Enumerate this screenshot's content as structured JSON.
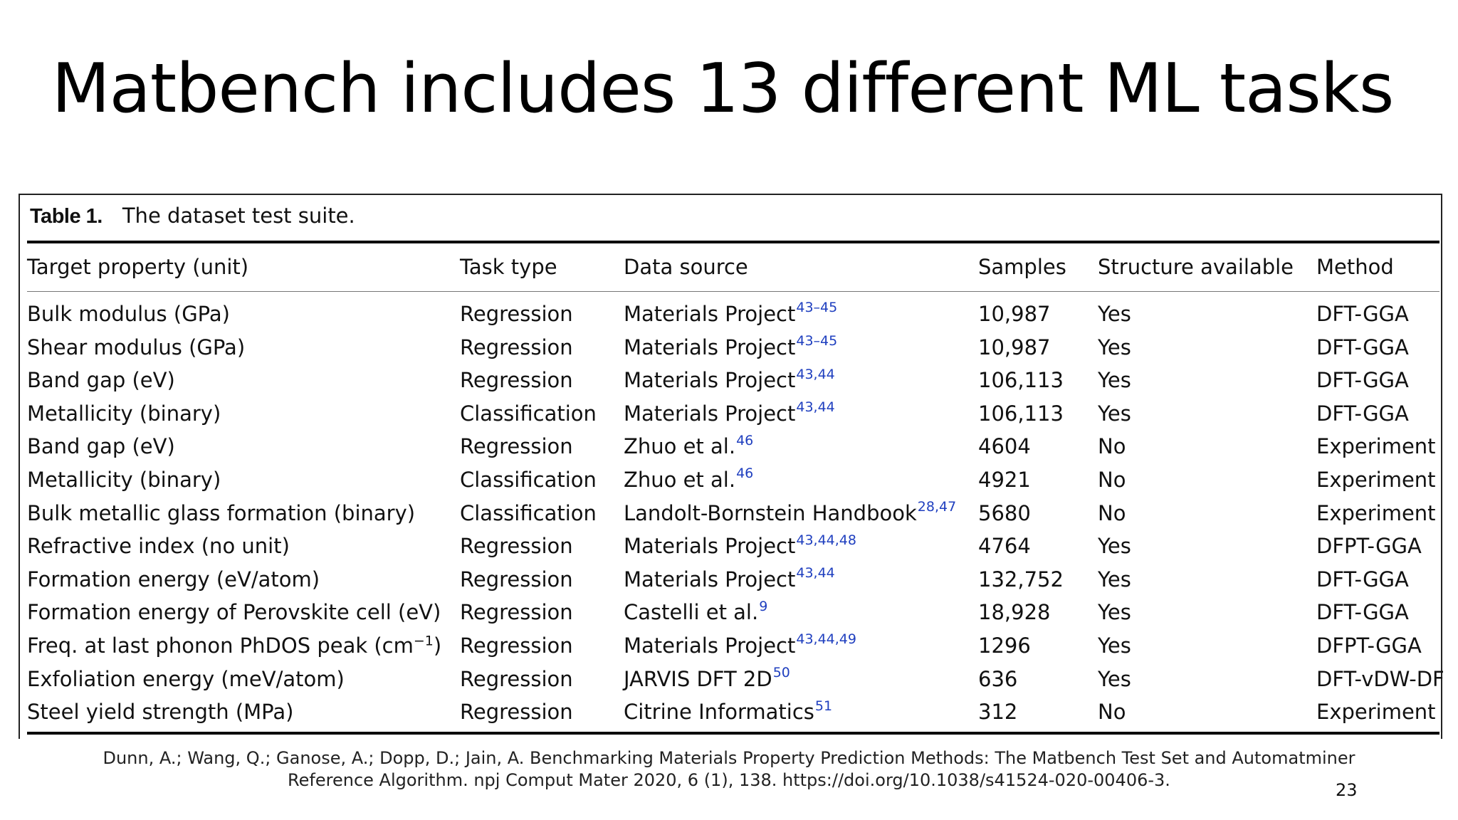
{
  "slide": {
    "title": "Matbench includes 13 different ML tasks",
    "citation_line1": "Dunn, A.; Wang, Q.; Ganose, A.; Dopp, D.; Jain, A. Benchmarking Materials Property Prediction Methods: The Matbench Test Set and Automatminer",
    "citation_line2": "Reference Algorithm. npj Comput Mater 2020, 6 (1), 138. https://doi.org/10.1038/s41524-020-00406-3.",
    "page_number": "23"
  },
  "table": {
    "caption_label": "Table 1.",
    "caption_text": "The dataset test suite.",
    "headers": [
      "Target property (unit)",
      "Task type",
      "Data source",
      "Samples",
      "Structure available",
      "Method"
    ],
    "rows": [
      {
        "property": "Bulk modulus (GPa)",
        "task": "Regression",
        "source": "Materials Project",
        "ref": "43–45",
        "samples": "10,987",
        "structure": "Yes",
        "method": "DFT-GGA"
      },
      {
        "property": "Shear modulus (GPa)",
        "task": "Regression",
        "source": "Materials Project",
        "ref": "43–45",
        "samples": "10,987",
        "structure": "Yes",
        "method": "DFT-GGA"
      },
      {
        "property": "Band gap (eV)",
        "task": "Regression",
        "source": "Materials Project",
        "ref": "43,44",
        "samples": "106,113",
        "structure": "Yes",
        "method": "DFT-GGA"
      },
      {
        "property": "Metallicity (binary)",
        "task": "Classification",
        "source": "Materials Project",
        "ref": "43,44",
        "samples": "106,113",
        "structure": "Yes",
        "method": "DFT-GGA"
      },
      {
        "property": "Band gap (eV)",
        "task": "Regression",
        "source": "Zhuo et al.",
        "ref": "46",
        "samples": "4604",
        "structure": "No",
        "method": "Experiment"
      },
      {
        "property": "Metallicity (binary)",
        "task": "Classification",
        "source": "Zhuo et al.",
        "ref": "46",
        "samples": "4921",
        "structure": "No",
        "method": "Experiment"
      },
      {
        "property": "Bulk metallic glass formation (binary)",
        "task": "Classification",
        "source": "Landolt-Bornstein Handbook",
        "ref": "28,47",
        "samples": "5680",
        "structure": "No",
        "method": "Experiment"
      },
      {
        "property": "Refractive index (no unit)",
        "task": "Regression",
        "source": "Materials Project",
        "ref": "43,44,48",
        "samples": "4764",
        "structure": "Yes",
        "method": "DFPT-GGA"
      },
      {
        "property": "Formation energy (eV/atom)",
        "task": "Regression",
        "source": "Materials Project",
        "ref": "43,44",
        "samples": "132,752",
        "structure": "Yes",
        "method": "DFT-GGA"
      },
      {
        "property": "Formation energy of Perovskite cell (eV)",
        "task": "Regression",
        "source": "Castelli et al.",
        "ref": "9",
        "samples": "18,928",
        "structure": "Yes",
        "method": "DFT-GGA"
      },
      {
        "property": "Freq. at last phonon PhDOS peak (cm",
        "property_sup": "−1",
        "property_end": ")",
        "task": "Regression",
        "source": "Materials Project",
        "ref": "43,44,49",
        "samples": "1296",
        "structure": "Yes",
        "method": "DFPT-GGA"
      },
      {
        "property": "Exfoliation energy (meV/atom)",
        "task": "Regression",
        "source": "JARVIS DFT 2D",
        "ref": "50",
        "samples": "636",
        "structure": "Yes",
        "method": "DFT-vDW-DF"
      },
      {
        "property": "Steel yield strength (MPa)",
        "task": "Regression",
        "source": "Citrine Informatics",
        "ref": "51",
        "samples": "312",
        "structure": "No",
        "method": "Experiment"
      }
    ]
  },
  "colors": {
    "reference_link": "#1f3fbf"
  }
}
